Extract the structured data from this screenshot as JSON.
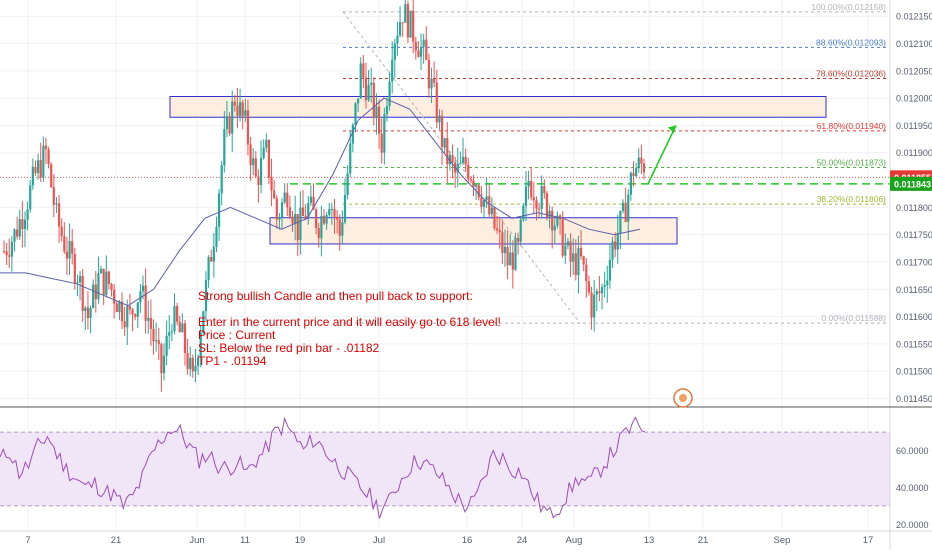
{
  "chart_data": [
    {
      "type": "candlestick",
      "symbol": "",
      "timeframe": "",
      "x_tick_labels": [
        "7",
        "21",
        "Jun",
        "11",
        "19",
        "Jul",
        "16",
        "24",
        "Aug",
        "13",
        "21",
        "Sep",
        "17"
      ],
      "y_tick_labels": [
        "0.012150",
        "0.012100",
        "0.012050",
        "0.012000",
        "0.011950",
        "0.011900",
        "0.011800",
        "0.011750",
        "0.011700",
        "0.011650",
        "0.011600",
        "0.011550",
        "0.011500",
        "0.011450"
      ],
      "ylim": [
        0.01144,
        0.012165
      ],
      "series": [
        {
          "name": "",
          "description": "OHLC price path (approximate close values, chronological)",
          "values": [
            0.01172,
            0.01175,
            0.0118,
            0.01186,
            0.0119,
            0.01178,
            0.01172,
            0.01168,
            0.0116,
            0.01167,
            0.01166,
            0.01162,
            0.0116,
            0.01165,
            0.01158,
            0.0115,
            0.0116,
            0.01156,
            0.01148,
            0.01162,
            0.01175,
            0.01192,
            0.012,
            0.01195,
            0.01185,
            0.0119,
            0.01178,
            0.01183,
            0.01176,
            0.0118,
            0.01177,
            0.01182,
            0.01175,
            0.0119,
            0.01205,
            0.012,
            0.01192,
            0.0121,
            0.01216,
            0.01212,
            0.01208,
            0.012,
            0.0119,
            0.01186,
            0.01188,
            0.01185,
            0.0118,
            0.01175,
            0.0117,
            0.01172,
            0.01185,
            0.01182,
            0.0118,
            0.01175,
            0.0117,
            0.0117,
            0.01162,
            0.01165,
            0.01173,
            0.01178,
            0.01187,
            0.01188
          ]
        },
        {
          "name": "",
          "description": "Moving average line (approximate values)",
          "values": [
            0.01168,
            0.01168,
            0.01167,
            0.01166,
            0.01164,
            0.01162,
            0.01165,
            0.01172,
            0.01178,
            0.0118,
            0.01178,
            0.01176,
            0.01178,
            0.01186,
            0.01196,
            0.012,
            0.01198,
            0.01192,
            0.01186,
            0.01181,
            0.01178,
            0.01179,
            0.01178,
            0.01176,
            0.01175,
            0.01176
          ]
        }
      ],
      "fibonacci_levels": [
        {
          "label": "100.00%(0.012158)",
          "value": 0.012158,
          "color": "#b2b5be"
        },
        {
          "label": "88.60%(0.012093)",
          "value": 0.012093,
          "color": "#4c7fd0"
        },
        {
          "label": "78.60%(0.012036)",
          "value": 0.012036,
          "color": "#c0392b"
        },
        {
          "label": "61.80%(0.011940)",
          "value": 0.01194,
          "color": "#e53935"
        },
        {
          "label": "50.00%(0.011873)",
          "value": 0.011873,
          "color": "#55b14a"
        },
        {
          "label": "38.20%(0.011806)",
          "value": 0.011806,
          "color": "#a3b832"
        },
        {
          "label": "0.00%(0.011588)",
          "value": 0.011588,
          "color": "#b2b5be"
        }
      ],
      "price_markers": [
        {
          "label": "0.011855",
          "value": 0.011855,
          "color": "#e53935"
        },
        {
          "label": "0.011843",
          "value": 0.011843,
          "color": "#1aa31a"
        }
      ],
      "zones": [
        {
          "name": "resistance-zone",
          "top": 0.012003,
          "bottom": 0.011965
        },
        {
          "name": "support-zone",
          "top": 0.011781,
          "bottom": 0.011733
        }
      ],
      "annotation_lines": [
        "Strong bullish Candle and then pull back to support:",
        "",
        "Enter in the current price and it will easily go to 618 level!",
        "Price : Current",
        "SL: Below the red pin bar - .01182",
        "TP1 - .01194"
      ],
      "colors": {
        "bull": "#26a69a",
        "bear": "#ef5350",
        "ma": "#5b5fa8",
        "annotation_text": "#e00000",
        "zone_fill": "#fdeee0",
        "zone_border": "#3030d0",
        "projection_arrow": "#22cc22"
      }
    },
    {
      "type": "line",
      "name": "",
      "y_tick_labels": [
        "60.0000",
        "40.0000",
        "20.0000"
      ],
      "ylim": [
        18,
        82
      ],
      "band": [
        30,
        70
      ],
      "values": [
        55,
        60,
        48,
        52,
        62,
        68,
        58,
        50,
        45,
        40,
        42,
        38,
        36,
        30,
        35,
        45,
        58,
        66,
        72,
        70,
        62,
        55,
        58,
        52,
        50,
        54,
        48,
        55,
        60,
        70,
        74,
        68,
        60,
        66,
        62,
        55,
        50,
        45,
        40,
        35,
        28,
        32,
        42,
        50,
        55,
        52,
        48,
        42,
        35,
        30,
        32,
        45,
        58,
        56,
        50,
        48,
        38,
        30,
        25,
        30,
        38,
        45,
        42,
        48,
        55,
        62,
        70,
        74,
        72
      ],
      "colors": {
        "line": "#9b4fb5",
        "band_fill": "#f1e5f8",
        "band_border": "#b49bc8"
      }
    }
  ]
}
